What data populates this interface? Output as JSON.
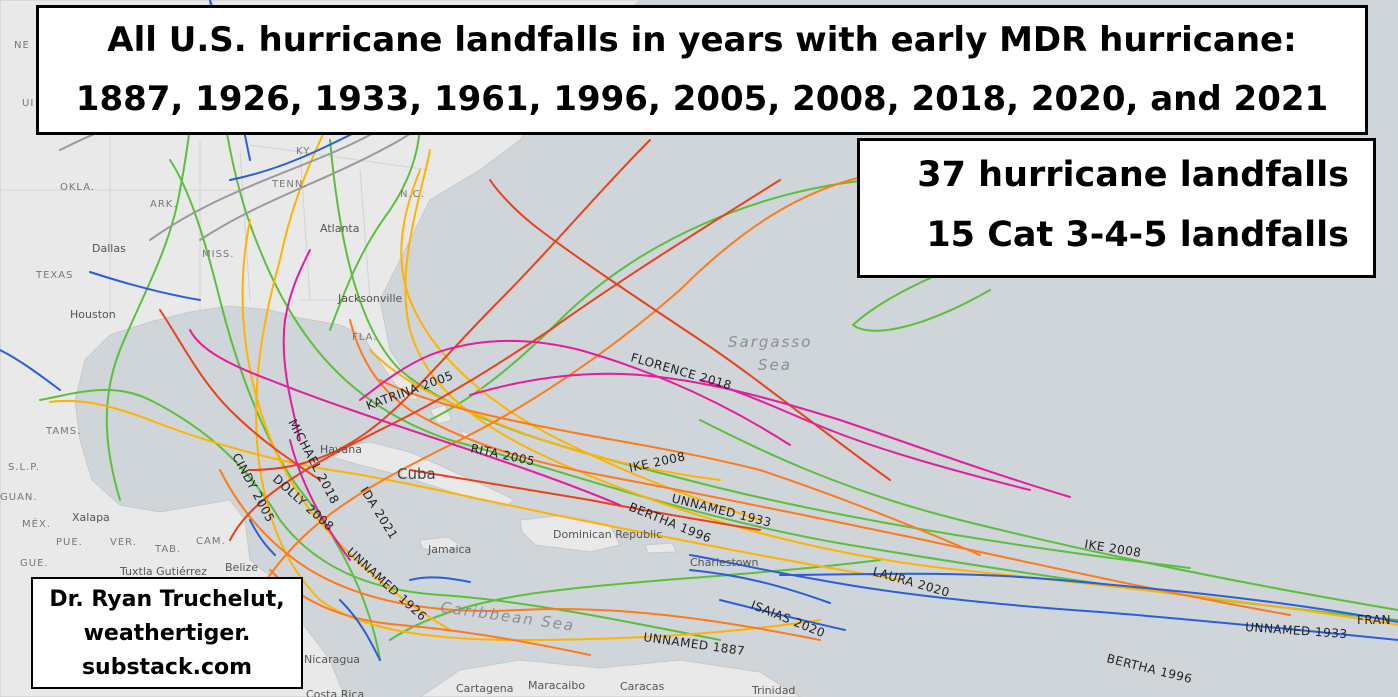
{
  "title": {
    "line1": "All U.S. hurricane landfalls in years with early MDR hurricane:",
    "line2": "1887, 1926, 1933, 1961, 1996, 2005, 2008, 2018, 2020, and 2021"
  },
  "stats": {
    "landfalls": "37 hurricane landfalls",
    "major_landfalls": "15 Cat 3-4-5 landfalls"
  },
  "credit": {
    "line1": "Dr. Ryan Truchelut,",
    "line2": "weathertiger.",
    "line3": "substack.com"
  },
  "map_labels": {
    "countries": [
      "Cuba"
    ],
    "seas": [
      "Sargasso",
      "Sea",
      "Caribbean Sea"
    ],
    "cities": [
      "Dallas",
      "Houston",
      "Atlanta",
      "Jacksonville",
      "Havana",
      "Jamaica",
      "Dominican Republic",
      "Charlestown",
      "Xalapa",
      "Tuxtla Gutiérrez",
      "Belize",
      "Cartagena",
      "Maracaibo",
      "Caracas",
      "Trinidad",
      "Costa Rica",
      "Nicaragua"
    ],
    "states": [
      "OKLA.",
      "TEXAS",
      "TENN.",
      "KY.",
      "N.C.",
      "FLA.",
      "MISS.",
      "ARK.",
      "TAMS.",
      "S.L.P.",
      "GUAN.",
      "MÉX.",
      "PUE.",
      "VER.",
      "GUE.",
      "TAB.",
      "CAM.",
      "NE",
      "UI"
    ]
  },
  "track_labels": [
    "KATRINA 2005",
    "RITA 2005",
    "FLORENCE 2018",
    "IKE 2008",
    "UNNAMED 1933",
    "BERTHA 1996",
    "MICHAEL 2018",
    "IDA 2021",
    "CINDY 2005",
    "DOLLY 2008",
    "UNNAMED 1926",
    "LAURA 2020",
    "ISAIAS 2020",
    "UNNAMED 1887",
    "IKE 2008",
    "UNNAMED 1933",
    "BERTHA 1996",
    "FRAN"
  ],
  "colors": {
    "water": "#cfd5d9",
    "land": "#e9e9ea",
    "trop_storm": "#5cbf3c",
    "cat1": "#ffb300",
    "cat2": "#ff7a1a",
    "cat3": "#e8421c",
    "cat4": "#e41e9b",
    "depression": "#2a5fd8",
    "extratropical": "#9a9a9a"
  }
}
